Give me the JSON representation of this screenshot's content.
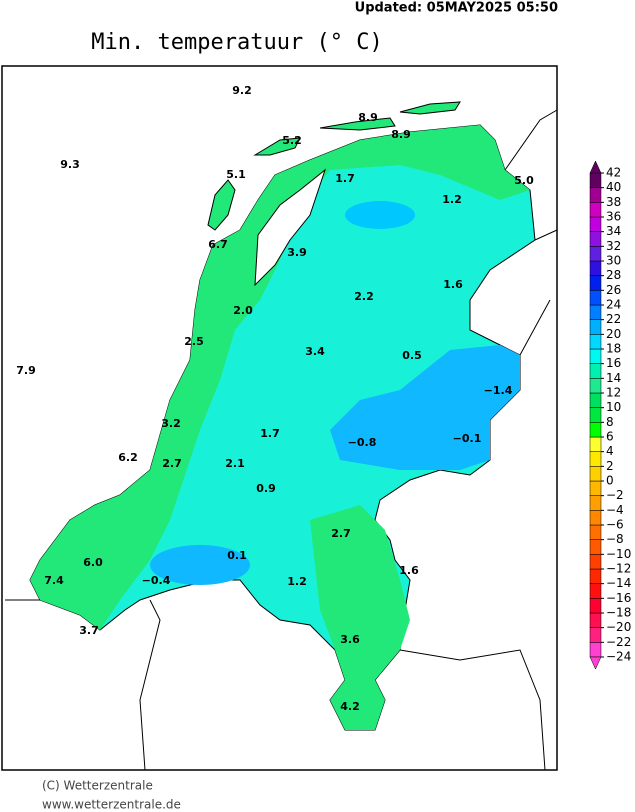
{
  "updated": "Updated:  05MAY2025  05:50",
  "title": "Min. temperatuur (° C)",
  "credit": "(C) Wetterzentrale",
  "website": "www.wetterzentrale.de",
  "stations": [
    "9.2",
    "8.9",
    "8.9",
    "5.2",
    "9.3",
    "5.1",
    "1.7",
    "5.0",
    "1.2",
    "6.7",
    "3.9",
    "1.6",
    "2.2",
    "2.0",
    "2.5",
    "3.4",
    "0.5",
    "7.9",
    "−1.4",
    "3.2",
    "1.7",
    "−0.1",
    "−0.8",
    "6.2",
    "2.7",
    "2.1",
    "0.9",
    "2.7",
    "0.1",
    "6.0",
    "1.6",
    "7.4",
    "−0.4",
    "1.2",
    "3.7",
    "3.6",
    "4.2"
  ],
  "colorbar": {
    "ticks": [
      42,
      40,
      38,
      36,
      34,
      32,
      30,
      28,
      26,
      24,
      22,
      20,
      18,
      16,
      14,
      12,
      10,
      8,
      6,
      4,
      2,
      0,
      {
        "value": -2,
        "label": "−2"
      },
      {
        "value": -4,
        "label": "−4"
      },
      {
        "value": -6,
        "label": "−6"
      },
      {
        "value": -8,
        "label": "−8"
      },
      {
        "value": -10,
        "label": "−10"
      },
      {
        "value": -12,
        "label": "−12"
      },
      {
        "value": -14,
        "label": "−14"
      },
      {
        "value": -16,
        "label": "−16"
      },
      {
        "value": -18,
        "label": "−18"
      },
      {
        "value": -20,
        "label": "−20"
      },
      {
        "value": -22,
        "label": "−22"
      },
      {
        "value": -24,
        "label": "−24"
      }
    ],
    "colors": [
      "#ff40d0",
      "#ff2080",
      "#ff1050",
      "#ff0030",
      "#ff1010",
      "#ff2800",
      "#ff4000",
      "#ff5a00",
      "#ff7000",
      "#ff8800",
      "#ffa000",
      "#ffb800",
      "#ffd000",
      "#ffe800",
      "#ffff30",
      "#00ff00",
      "#00e840",
      "#00e060",
      "#20e890",
      "#00f0b0",
      "#00f8f0",
      "#00d8ff",
      "#00b0ff",
      "#0080ff",
      "#0050ff",
      "#0020f0",
      "#3010e0",
      "#6020e0",
      "#9010e0",
      "#c000e0",
      "#d000c0",
      "#a00090",
      "#600060"
    ]
  }
}
